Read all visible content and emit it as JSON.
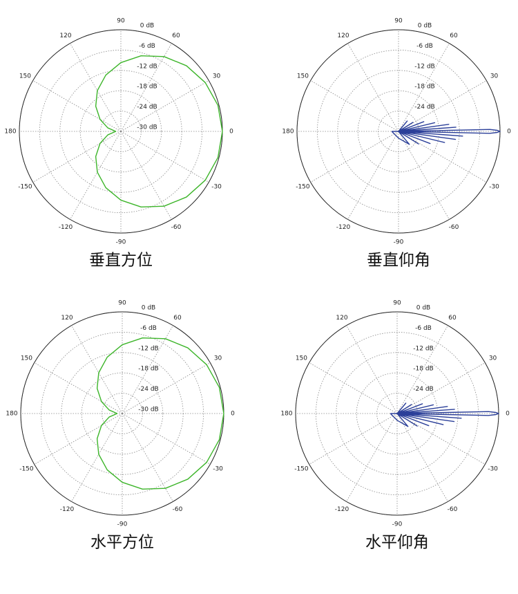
{
  "chart_data": [
    {
      "type": "polar",
      "title": "垂直方位",
      "x": [
        0,
        15,
        30,
        45,
        60,
        75,
        90,
        105,
        120,
        135,
        150,
        165,
        180,
        195,
        210,
        225,
        240,
        255,
        270,
        285,
        300,
        315,
        330,
        345,
        360
      ],
      "series": [
        {
          "color": "#3db52a",
          "values": [
            0,
            -0.3,
            -1.2,
            -2.6,
            -4.5,
            -6.9,
            -9.7,
            -12.8,
            -16.1,
            -19.5,
            -22.9,
            -26,
            -28.5,
            -26,
            -22.9,
            -19.5,
            -16.1,
            -12.8,
            -9.7,
            -6.9,
            -4.5,
            -2.6,
            -1.2,
            -0.3,
            0
          ]
        }
      ],
      "xticks": [
        0,
        30,
        60,
        90,
        120,
        150,
        180,
        -150,
        -120,
        -90,
        -60,
        -30
      ],
      "ylim": [
        -30,
        0
      ],
      "yticks": [
        {
          "value": 0,
          "label": "0 dB"
        },
        {
          "value": -6,
          "label": "-6 dB"
        },
        {
          "value": -12,
          "label": "-12 dB"
        },
        {
          "value": -18,
          "label": "-18 dB"
        },
        {
          "value": -24,
          "label": "-24 dB"
        },
        {
          "value": -30,
          "label": "-30 dB"
        }
      ],
      "grid": true
    },
    {
      "type": "polar",
      "title": "垂直仰角",
      "x": [
        -180,
        -90,
        -50,
        -40,
        -32,
        -26,
        -21,
        -17,
        -13.5,
        -10.5,
        -8,
        -6,
        -4.2,
        -2.5,
        -1.2,
        -0.6,
        0,
        0.6,
        1.2,
        2.5,
        4.2,
        6,
        8,
        10.5,
        13.5,
        17,
        21,
        26,
        32,
        40,
        50,
        90,
        180
      ],
      "series": [
        {
          "color": "#2b3f99",
          "values": [
            -28,
            -28,
            -25,
            -30,
            -23,
            -30,
            -20,
            -30,
            -16,
            -30,
            -13,
            -30,
            -11,
            -30,
            -3,
            -0.8,
            0,
            -0.8,
            -3,
            -30,
            -13,
            -30,
            -15,
            -30,
            -19,
            -30,
            -22,
            -30,
            -25,
            -30,
            -26,
            -30,
            -28
          ]
        }
      ],
      "xticks": [
        0,
        30,
        60,
        90,
        120,
        150,
        180,
        -150,
        -120,
        -90,
        -60,
        -30
      ],
      "ylim": [
        -30,
        0
      ],
      "yticks": [
        {
          "value": 0,
          "label": "0 dB"
        },
        {
          "value": -6,
          "label": "-6 dB"
        },
        {
          "value": -12,
          "label": "-12 dB"
        },
        {
          "value": -18,
          "label": "-18 dB"
        },
        {
          "value": -24,
          "label": "-24 dB"
        }
      ],
      "grid": true
    },
    {
      "type": "polar",
      "title": "水平方位",
      "x": [
        0,
        15,
        30,
        45,
        60,
        75,
        90,
        105,
        120,
        135,
        150,
        165,
        180,
        195,
        210,
        225,
        240,
        255,
        270,
        285,
        300,
        315,
        330,
        345,
        360
      ],
      "series": [
        {
          "color": "#3db52a",
          "values": [
            0,
            -0.3,
            -1.2,
            -2.6,
            -4.5,
            -6.9,
            -9.7,
            -12.8,
            -16.1,
            -19.5,
            -22.9,
            -26,
            -28.5,
            -26,
            -22.9,
            -19.5,
            -16.1,
            -12.8,
            -9.7,
            -6.9,
            -4.5,
            -2.6,
            -1.2,
            -0.3,
            0
          ]
        }
      ],
      "xticks": [
        0,
        30,
        60,
        90,
        120,
        150,
        180,
        -150,
        -120,
        -90,
        -60,
        -30
      ],
      "ylim": [
        -30,
        0
      ],
      "yticks": [
        {
          "value": 0,
          "label": "0 dB"
        },
        {
          "value": -6,
          "label": "-6 dB"
        },
        {
          "value": -12,
          "label": "-12 dB"
        },
        {
          "value": -18,
          "label": "-18 dB"
        },
        {
          "value": -24,
          "label": "-24 dB"
        },
        {
          "value": -30,
          "label": "-30 dB"
        }
      ],
      "grid": true
    },
    {
      "type": "polar",
      "title": "水平仰角",
      "x": [
        -180,
        -90,
        -50,
        -40,
        -32,
        -26,
        -21,
        -17,
        -13.5,
        -10.5,
        -8,
        -6,
        -4.2,
        -2.5,
        -1.2,
        -0.6,
        0,
        0.6,
        1.2,
        2.5,
        4.2,
        6,
        8,
        10.5,
        13.5,
        17,
        21,
        26,
        32,
        40,
        50,
        90,
        180
      ],
      "series": [
        {
          "color": "#2b3f99",
          "values": [
            -28,
            -28,
            -25,
            -30,
            -23,
            -30,
            -20,
            -30,
            -16,
            -30,
            -13,
            -30,
            -11,
            -30,
            -3,
            -0.8,
            0,
            -0.8,
            -3,
            -30,
            -13,
            -30,
            -15,
            -30,
            -19,
            -30,
            -22,
            -30,
            -25,
            -30,
            -26,
            -30,
            -28
          ]
        }
      ],
      "xticks": [
        0,
        30,
        60,
        90,
        120,
        150,
        180,
        -150,
        -120,
        -90,
        -60,
        -30
      ],
      "ylim": [
        -30,
        0
      ],
      "yticks": [
        {
          "value": 0,
          "label": "0 dB"
        },
        {
          "value": -6,
          "label": "-6 dB"
        },
        {
          "value": -12,
          "label": "-12 dB"
        },
        {
          "value": -18,
          "label": "-18 dB"
        },
        {
          "value": -24,
          "label": "-24 dB"
        }
      ],
      "grid": true
    }
  ]
}
